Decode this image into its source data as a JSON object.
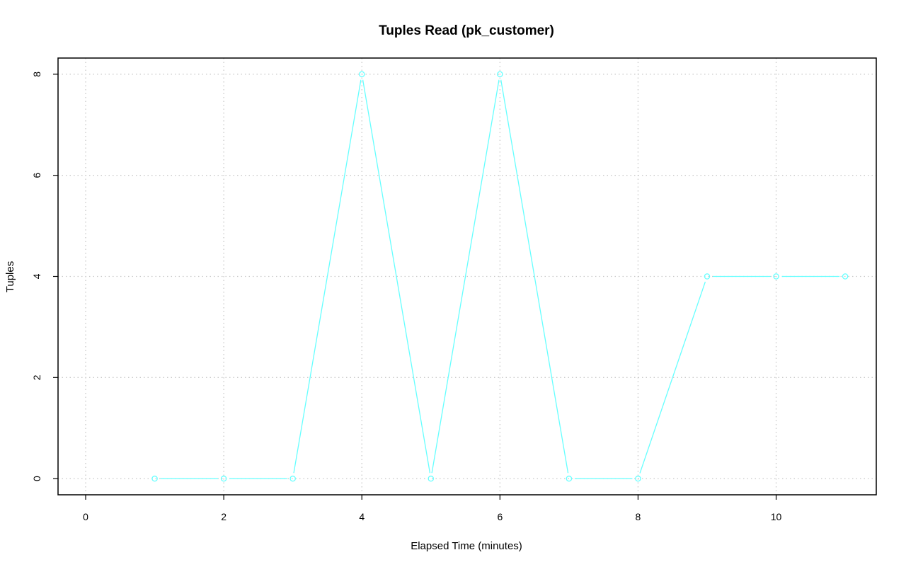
{
  "chart_data": {
    "type": "line",
    "title": "Tuples Read (pk_customer)",
    "xlabel": "Elapsed Time (minutes)",
    "ylabel": "Tuples",
    "xlim": [
      -0.4,
      11.45
    ],
    "ylim": [
      -0.32,
      8.32
    ],
    "xticks": [
      0,
      2,
      4,
      6,
      8,
      10
    ],
    "yticks": [
      0,
      2,
      4,
      6,
      8
    ],
    "grid": true,
    "series_color": "#66ffff",
    "x": [
      1,
      2,
      3,
      4,
      5,
      6,
      7,
      8,
      9,
      10,
      11
    ],
    "y": [
      0,
      0,
      0,
      8,
      0,
      8,
      0,
      0,
      4,
      4,
      4
    ]
  }
}
